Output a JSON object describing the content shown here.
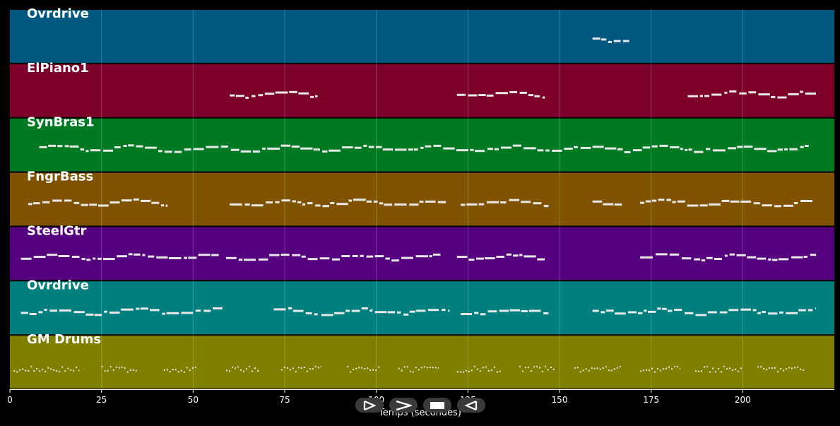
{
  "chart_data": {
    "type": "pianoroll",
    "xlabel": "Temps (secondes)",
    "xlim": [
      0,
      225
    ],
    "xticks": [
      0,
      25,
      50,
      75,
      100,
      125,
      150,
      175,
      200
    ],
    "grid": true,
    "tracks": [
      {
        "name": "Ovrdrive",
        "color": "#00577f",
        "segments": [
          [
            159,
            169
          ]
        ]
      },
      {
        "name": "ElPiano1",
        "color": "#7d002a",
        "segments": [
          [
            60,
            84
          ],
          [
            122,
            146
          ],
          [
            185,
            220
          ]
        ]
      },
      {
        "name": "SynBras1",
        "color": "#007a22",
        "segments": [
          [
            8,
            218
          ]
        ]
      },
      {
        "name": "FngrBass",
        "color": "#7f5300",
        "segments": [
          [
            5,
            43
          ],
          [
            60,
            119
          ],
          [
            123,
            147
          ],
          [
            159,
            167
          ],
          [
            172,
            219
          ]
        ]
      },
      {
        "name": "SteelGtr",
        "color": "#55007e",
        "segments": [
          [
            3,
            57
          ],
          [
            59,
            118
          ],
          [
            122,
            146
          ],
          [
            172,
            220
          ]
        ]
      },
      {
        "name": "Ovrdrive",
        "color": "#007f7f",
        "segments": [
          [
            3,
            58
          ],
          [
            72,
            84
          ],
          [
            85,
            120
          ],
          [
            123,
            147
          ],
          [
            159,
            220
          ]
        ]
      },
      {
        "name": "GM Drums",
        "color": "#7f7f00",
        "segments": [
          [
            1,
            19
          ],
          [
            25,
            35
          ],
          [
            42,
            51
          ],
          [
            59,
            68
          ],
          [
            74,
            85
          ],
          [
            92,
            101
          ],
          [
            106,
            117
          ],
          [
            122,
            134
          ],
          [
            139,
            149
          ],
          [
            154,
            167
          ],
          [
            172,
            183
          ],
          [
            187,
            200
          ],
          [
            204,
            217
          ]
        ]
      }
    ]
  },
  "controls": [
    {
      "name": "play-icon"
    },
    {
      "name": "fast-forward-icon"
    },
    {
      "name": "stop-icon"
    },
    {
      "name": "rewind-icon"
    }
  ]
}
